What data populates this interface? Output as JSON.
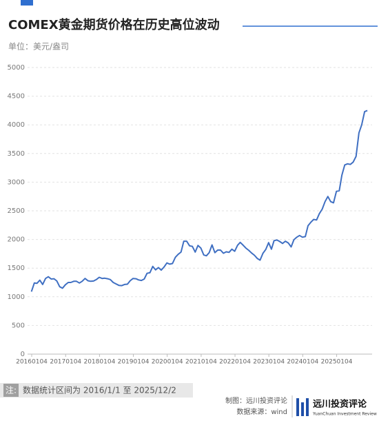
{
  "chart_data": {
    "type": "line",
    "title": "COMEX黄金期货价格在历史高位波动",
    "subtitle": "单位：美元/盎司",
    "x": [
      "2016-01",
      "2016-02",
      "2016-03",
      "2016-04",
      "2016-05",
      "2016-06",
      "2016-07",
      "2016-08",
      "2016-09",
      "2016-10",
      "2016-11",
      "2016-12",
      "2017-01",
      "2017-02",
      "2017-03",
      "2017-04",
      "2017-05",
      "2017-06",
      "2017-07",
      "2017-08",
      "2017-09",
      "2017-10",
      "2017-11",
      "2017-12",
      "2018-01",
      "2018-02",
      "2018-03",
      "2018-04",
      "2018-05",
      "2018-06",
      "2018-07",
      "2018-08",
      "2018-09",
      "2018-10",
      "2018-11",
      "2018-12",
      "2019-01",
      "2019-02",
      "2019-03",
      "2019-04",
      "2019-05",
      "2019-06",
      "2019-07",
      "2019-08",
      "2019-09",
      "2019-10",
      "2019-11",
      "2019-12",
      "2020-01",
      "2020-02",
      "2020-03",
      "2020-04",
      "2020-05",
      "2020-06",
      "2020-07",
      "2020-08",
      "2020-09",
      "2020-10",
      "2020-11",
      "2020-12",
      "2021-01",
      "2021-02",
      "2021-03",
      "2021-04",
      "2021-05",
      "2021-06",
      "2021-07",
      "2021-08",
      "2021-09",
      "2021-10",
      "2021-11",
      "2021-12",
      "2022-01",
      "2022-02",
      "2022-03",
      "2022-04",
      "2022-05",
      "2022-06",
      "2022-07",
      "2022-08",
      "2022-09",
      "2022-10",
      "2022-11",
      "2022-12",
      "2023-01",
      "2023-02",
      "2023-03",
      "2023-04",
      "2023-05",
      "2023-06",
      "2023-07",
      "2023-08",
      "2023-09",
      "2023-10",
      "2023-11",
      "2023-12",
      "2024-01",
      "2024-02",
      "2024-03",
      "2024-04",
      "2024-05",
      "2024-06",
      "2024-07",
      "2024-08",
      "2024-09",
      "2024-10",
      "2024-11",
      "2024-12",
      "2025-01",
      "2025-02",
      "2025-03",
      "2025-04",
      "2025-05",
      "2025-06",
      "2025-07",
      "2025-08",
      "2025-09",
      "2025-10",
      "2025-11",
      "2025-12"
    ],
    "values": [
      1090,
      1240,
      1235,
      1290,
      1215,
      1320,
      1350,
      1310,
      1315,
      1275,
      1175,
      1150,
      1210,
      1250,
      1250,
      1270,
      1270,
      1240,
      1270,
      1320,
      1280,
      1270,
      1275,
      1300,
      1340,
      1320,
      1325,
      1315,
      1300,
      1250,
      1225,
      1200,
      1195,
      1215,
      1220,
      1280,
      1320,
      1315,
      1295,
      1285,
      1310,
      1410,
      1420,
      1530,
      1470,
      1510,
      1465,
      1520,
      1590,
      1570,
      1580,
      1690,
      1740,
      1780,
      1970,
      1970,
      1890,
      1880,
      1780,
      1895,
      1850,
      1730,
      1715,
      1770,
      1905,
      1770,
      1815,
      1815,
      1760,
      1785,
      1775,
      1830,
      1795,
      1900,
      1950,
      1900,
      1850,
      1810,
      1765,
      1725,
      1670,
      1640,
      1760,
      1825,
      1945,
      1830,
      1980,
      1990,
      1965,
      1930,
      1970,
      1940,
      1870,
      1995,
      2040,
      2070,
      2040,
      2050,
      2240,
      2300,
      2350,
      2340,
      2450,
      2530,
      2660,
      2750,
      2660,
      2640,
      2840,
      2850,
      3120,
      3300,
      3320,
      3310,
      3350,
      3450,
      3860,
      4000,
      4230,
      4250
    ],
    "color": "#3f6fc2",
    "ylim": [
      0,
      5000
    ],
    "yticks": [
      0,
      500,
      1000,
      1500,
      2000,
      2500,
      3000,
      3500,
      4000,
      4500,
      5000
    ],
    "xlim": [
      "2016-01-04",
      "2025-12-15"
    ],
    "xticks": [
      {
        "value": "2016-01-04",
        "label": "20160104"
      },
      {
        "value": "2017-01-04",
        "label": "20170104"
      },
      {
        "value": "2018-01-04",
        "label": "20180104"
      },
      {
        "value": "2019-01-04",
        "label": "20190104"
      },
      {
        "value": "2020-01-04",
        "label": "20200104"
      },
      {
        "value": "2021-01-04",
        "label": "20210104"
      },
      {
        "value": "2022-01-04",
        "label": "20220104"
      },
      {
        "value": "2023-01-04",
        "label": "20230104"
      },
      {
        "value": "2024-01-04",
        "label": "20240104"
      },
      {
        "value": "2025-01-04",
        "label": "20250104"
      }
    ],
    "grid": true
  },
  "footer": {
    "note_label": "注:",
    "note": "数据统计区间为 2016/1/1 至 2025/12/2",
    "credit": "制图：远川投资评论",
    "source": "数据来源：wind",
    "logo_cn": "远川投资评论",
    "logo_en": "YuanChuan Investment Review"
  }
}
